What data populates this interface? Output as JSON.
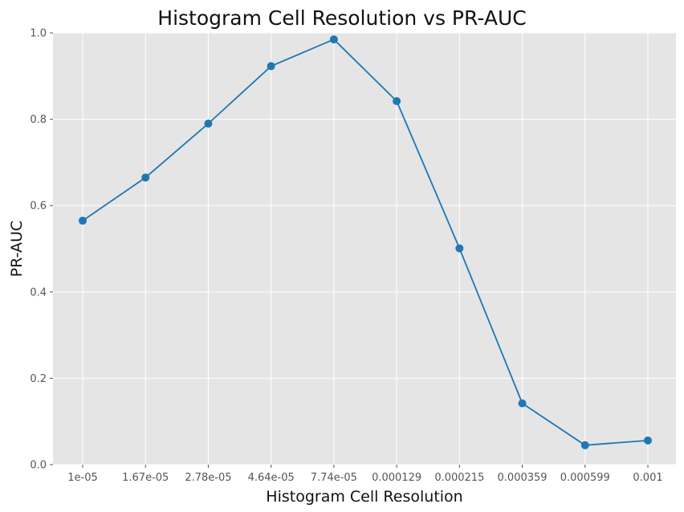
{
  "chart_data": {
    "type": "line",
    "title": "Histogram Cell Resolution vs PR-AUC",
    "xlabel": "Histogram Cell Resolution",
    "ylabel": "PR-AUC",
    "categories": [
      "1e-05",
      "1.67e-05",
      "2.78e-05",
      "4.64e-05",
      "7.74e-05",
      "0.000129",
      "0.000215",
      "0.000359",
      "0.000599",
      "0.001"
    ],
    "series": [
      {
        "values": [
          0.565,
          0.665,
          0.79,
          0.923,
          0.985,
          0.842,
          0.501,
          0.142,
          0.045,
          0.056
        ],
        "color": "#1f77b4"
      }
    ],
    "ylim": [
      0,
      1.0
    ],
    "yticks": [
      "0.0",
      "0.2",
      "0.4",
      "0.6",
      "0.8",
      "1.0"
    ],
    "grid": true,
    "style": {
      "background": "#e5e5e5",
      "grid_color": "#ffffff",
      "marker": "circle"
    }
  }
}
